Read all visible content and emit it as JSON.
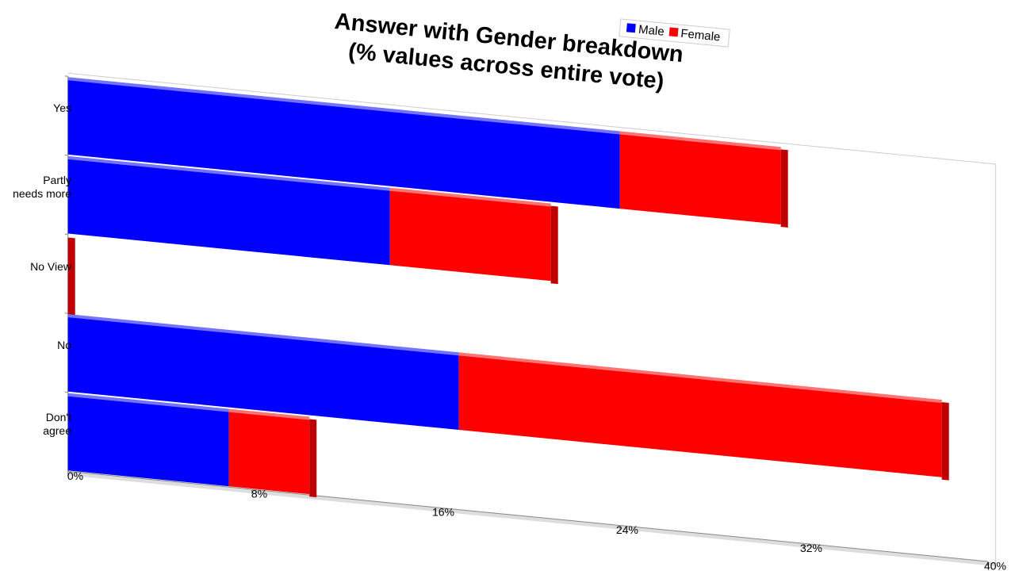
{
  "chart_data": {
    "type": "bar",
    "orientation": "horizontal",
    "stacked": true,
    "title": "Answer with Gender breakdown\n(% values across entire vote)",
    "categories": [
      "Yes",
      "Partly\nneeds more",
      "No View",
      "No",
      "Don't\nagree"
    ],
    "series": [
      {
        "name": "Male",
        "color": "#0000ff",
        "values": [
          24,
          14,
          0,
          17,
          7
        ]
      },
      {
        "name": "Female",
        "color": "#ff0000",
        "values": [
          7,
          7,
          0,
          21,
          3.5
        ]
      }
    ],
    "xlim": [
      0,
      40
    ],
    "xticks": [
      {
        "value": 0,
        "label": "0%"
      },
      {
        "value": 8,
        "label": "8%"
      },
      {
        "value": 16,
        "label": "16%"
      },
      {
        "value": 24,
        "label": "24%"
      },
      {
        "value": 32,
        "label": "32%"
      },
      {
        "value": 40,
        "label": "40%"
      }
    ],
    "legend": "top"
  }
}
